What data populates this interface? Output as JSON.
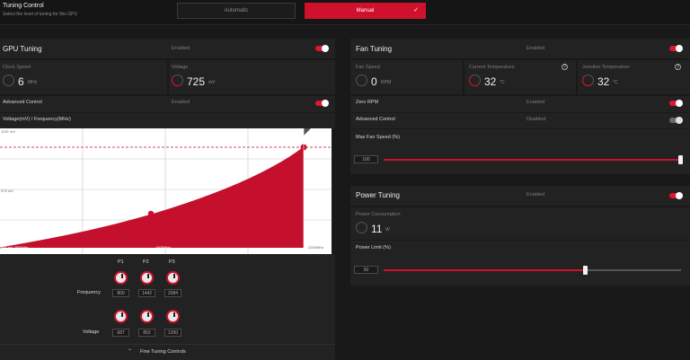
{
  "tuning_control": {
    "title": "Tuning Control",
    "subtitle": "Select the level of tuning for this GPU",
    "automatic_label": "Automatic",
    "manual_label": "Manual",
    "manual_check": "✓"
  },
  "gpu_tuning": {
    "title": "GPU Tuning",
    "status": "Enabled",
    "clock_speed_label": "Clock Speed",
    "clock_speed_value": "6",
    "clock_speed_unit": "MHz",
    "voltage_label": "Voltage",
    "voltage_value": "725",
    "voltage_unit": "mV",
    "advanced_control_label": "Advanced Control",
    "advanced_control_status": "Enabled",
    "curve_label": "Voltage(mV) / Frequency(MHz)",
    "y_top_label": "1297 mV",
    "y_mid_label": "973 mV",
    "x_left_label": "650 mV, 800MHz",
    "x_mid_label": "1500MHz",
    "x_right_label": "2200MHz",
    "points": [
      "P1",
      "P2",
      "P3"
    ],
    "frequency_label": "Frequency",
    "frequency_values": [
      "800",
      "1442",
      "2084"
    ],
    "voltage_row_label": "Voltage",
    "voltage_values": [
      "687",
      "852",
      "1200"
    ],
    "fine_tuning_label": "Fine Tuning Controls",
    "fine_tuning_icon": "chevron-up-icon"
  },
  "fan_tuning": {
    "title": "Fan Tuning",
    "status": "Enabled",
    "fan_speed_label": "Fan Speed",
    "fan_speed_value": "0",
    "fan_speed_unit": "RPM",
    "current_temp_label": "Current Temperature",
    "current_temp_value": "32",
    "current_temp_unit": "°C",
    "junction_temp_label": "Junction Temperature",
    "junction_temp_value": "32",
    "junction_temp_unit": "°C",
    "help_glyph": "?",
    "zero_rpm_label": "Zero RPM",
    "zero_rpm_status": "Enabled",
    "advanced_control_label": "Advanced Control",
    "advanced_control_status": "Disabled",
    "max_fan_speed_label": "Max Fan Speed (%)",
    "max_fan_speed_value": "100",
    "max_fan_speed_fraction": 1.0
  },
  "power_tuning": {
    "title": "Power Tuning",
    "status": "Enabled",
    "power_consumption_label": "Power Consumption",
    "power_consumption_value": "11",
    "power_consumption_unit": "W",
    "power_limit_label": "Power Limit (%)",
    "power_limit_value": "50",
    "power_limit_fraction": 0.68
  },
  "colors": {
    "accent": "#d0112d",
    "panel": "#222222",
    "background": "#191919"
  }
}
